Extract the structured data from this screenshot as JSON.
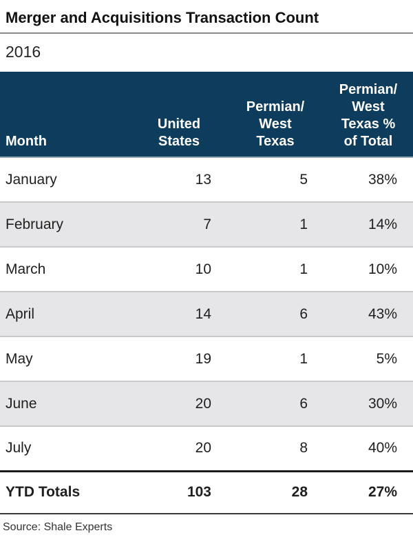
{
  "title": "Merger and Acquisitions Transaction Count",
  "subtitle": "2016",
  "source": "Source: Shale Experts",
  "colors": {
    "header_bg": "#0e3c5c",
    "header_text": "#ffffff",
    "alt_row_bg": "#e6e6e8",
    "row_separator": "#c9c9c9",
    "title_rule": "#8a8a8a",
    "totals_rule_top": "#1a1a1a",
    "totals_rule_bottom": "#3a3a3a"
  },
  "table": {
    "headers": [
      "Month",
      "United\nStates",
      "Permian/\nWest\nTexas",
      "Permian/\nWest\nTexas %\nof Total"
    ],
    "rows": [
      {
        "month": "January",
        "us": "13",
        "permian": "5",
        "pct": "38%"
      },
      {
        "month": "February",
        "us": "7",
        "permian": "1",
        "pct": "14%"
      },
      {
        "month": "March",
        "us": "10",
        "permian": "1",
        "pct": "10%"
      },
      {
        "month": "April",
        "us": "14",
        "permian": "6",
        "pct": "43%"
      },
      {
        "month": "May",
        "us": "19",
        "permian": "1",
        "pct": "5%"
      },
      {
        "month": "June",
        "us": "20",
        "permian": "6",
        "pct": "30%"
      },
      {
        "month": "July",
        "us": "20",
        "permian": "8",
        "pct": "40%"
      }
    ],
    "totals": {
      "label": "YTD Totals",
      "us": "103",
      "permian": "28",
      "pct": "27%"
    }
  },
  "chart_data": {
    "type": "table",
    "title": "Merger and Acquisitions Transaction Count",
    "subtitle": "2016",
    "columns": [
      "Month",
      "United States",
      "Permian/West Texas",
      "Permian/West Texas % of Total"
    ],
    "rows": [
      [
        "January",
        13,
        5,
        "38%"
      ],
      [
        "February",
        7,
        1,
        "14%"
      ],
      [
        "March",
        10,
        1,
        "10%"
      ],
      [
        "April",
        14,
        6,
        "43%"
      ],
      [
        "May",
        19,
        1,
        "5%"
      ],
      [
        "June",
        20,
        6,
        "30%"
      ],
      [
        "July",
        20,
        8,
        "40%"
      ]
    ],
    "totals_row": [
      "YTD Totals",
      103,
      28,
      "27%"
    ],
    "source": "Shale Experts"
  }
}
